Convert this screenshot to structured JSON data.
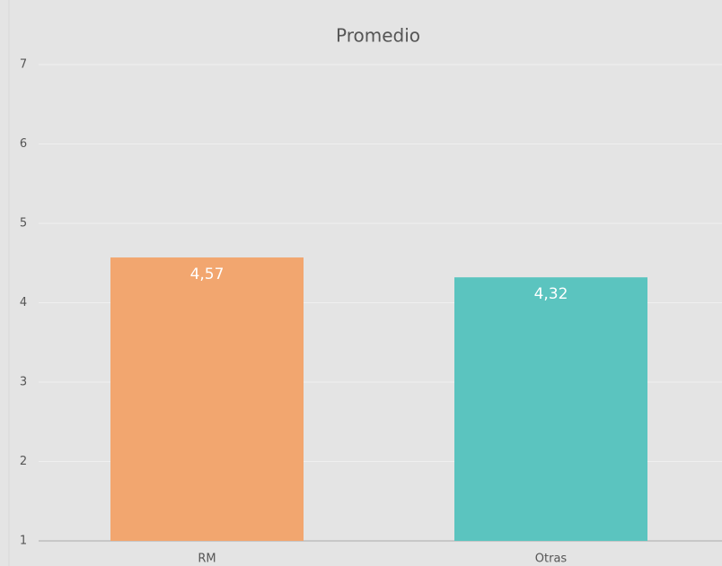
{
  "chart_data": {
    "type": "bar",
    "title": "Promedio",
    "categories": [
      "RM",
      "Otras"
    ],
    "values": [
      4.57,
      4.32
    ],
    "value_labels": [
      "4,57",
      "4,32"
    ],
    "colors": [
      "#f2a66f",
      "#5bc4bf"
    ],
    "ylim": [
      1,
      7
    ],
    "yticks": [
      1,
      2,
      3,
      4,
      5,
      6,
      7
    ],
    "grid": true
  }
}
